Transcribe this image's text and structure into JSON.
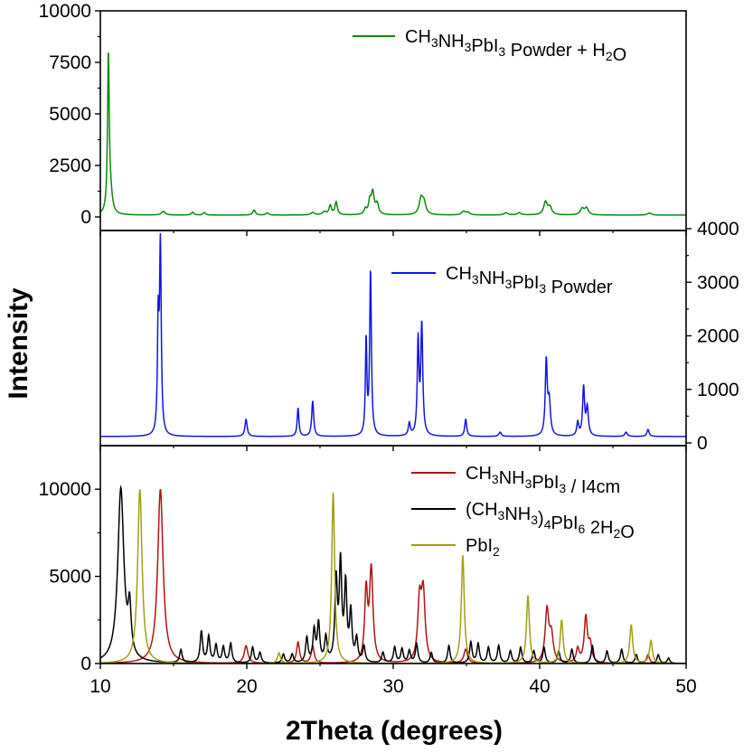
{
  "chart_data": {
    "type": "line",
    "xlabel": "2Theta (degrees)",
    "ylabel": "Intensity",
    "xlim": [
      10,
      50
    ],
    "xticks": [
      10,
      20,
      30,
      40,
      50
    ],
    "grid": false,
    "legend_position": "top-right",
    "panels": [
      {
        "id": "top",
        "ylim": [
          0,
          10000
        ],
        "yticks": [
          0,
          2500,
          5000,
          7500,
          10000
        ],
        "y_axis_side": "left",
        "series": [
          {
            "name": "CH3NH3PbI3 Powder + H2O",
            "legend_parts": [
              [
                "CH",
                ""
              ],
              [
                "3",
                "sub"
              ],
              [
                "NH",
                ""
              ],
              [
                "3",
                "sub"
              ],
              [
                "PbI",
                ""
              ],
              [
                "3",
                "sub"
              ],
              [
                " Powder + H",
                ""
              ],
              [
                "2",
                "sub"
              ],
              [
                "O",
                ""
              ]
            ],
            "color": "#0a8a0a",
            "baseline": 90,
            "peaks": [
              [
                10.55,
                7600,
                0.07
              ],
              [
                10.7,
                800,
                0.15
              ],
              [
                14.3,
                180,
                0.15
              ],
              [
                16.3,
                140,
                0.1
              ],
              [
                17.1,
                120,
                0.1
              ],
              [
                20.5,
                250,
                0.1
              ],
              [
                21.4,
                110,
                0.1
              ],
              [
                24.5,
                120,
                0.15
              ],
              [
                25.3,
                150,
                0.15
              ],
              [
                25.7,
                450,
                0.1
              ],
              [
                26.1,
                620,
                0.1
              ],
              [
                28.1,
                260,
                0.1
              ],
              [
                28.4,
                600,
                0.1
              ],
              [
                28.6,
                1050,
                0.12
              ],
              [
                28.9,
                500,
                0.12
              ],
              [
                31.9,
                750,
                0.15
              ],
              [
                32.1,
                550,
                0.15
              ],
              [
                34.8,
                170,
                0.15
              ],
              [
                35.1,
                120,
                0.15
              ],
              [
                37.7,
                110,
                0.15
              ],
              [
                38.6,
                110,
                0.15
              ],
              [
                40.4,
                620,
                0.15
              ],
              [
                40.7,
                350,
                0.15
              ],
              [
                42.9,
                300,
                0.15
              ],
              [
                43.2,
                330,
                0.15
              ],
              [
                47.5,
                100,
                0.15
              ]
            ]
          }
        ]
      },
      {
        "id": "middle",
        "ylim": [
          0,
          4000
        ],
        "yticks": [
          0,
          1000,
          2000,
          3000,
          4000
        ],
        "y_axis_side": "right",
        "series": [
          {
            "name": "CH3NH3PbI3 Powder",
            "legend_parts": [
              [
                "CH",
                ""
              ],
              [
                "3",
                "sub"
              ],
              [
                "NH",
                ""
              ],
              [
                "3",
                "sub"
              ],
              [
                "PbI",
                ""
              ],
              [
                "3",
                "sub"
              ],
              [
                " Powder",
                ""
              ]
            ],
            "color": "#1414e6",
            "baseline": 120,
            "peaks": [
              [
                13.95,
                2000,
                0.06
              ],
              [
                14.1,
                3520,
                0.07
              ],
              [
                19.95,
                320,
                0.09
              ],
              [
                23.5,
                530,
                0.07
              ],
              [
                24.5,
                660,
                0.08
              ],
              [
                28.15,
                1770,
                0.06
              ],
              [
                28.45,
                3060,
                0.07
              ],
              [
                31.1,
                230,
                0.08
              ],
              [
                31.7,
                1750,
                0.07
              ],
              [
                31.95,
                2050,
                0.08
              ],
              [
                34.95,
                320,
                0.08
              ],
              [
                37.3,
                80,
                0.1
              ],
              [
                40.45,
                1380,
                0.08
              ],
              [
                40.65,
                620,
                0.1
              ],
              [
                42.6,
                250,
                0.08
              ],
              [
                43.0,
                900,
                0.08
              ],
              [
                43.25,
                520,
                0.09
              ],
              [
                45.9,
                80,
                0.1
              ],
              [
                47.4,
                130,
                0.09
              ]
            ]
          }
        ]
      },
      {
        "id": "bottom",
        "ylim": [
          0,
          12500
        ],
        "yticks": [
          0,
          5000,
          10000
        ],
        "y_axis_side": "left",
        "series": [
          {
            "name": "CH3NH3PbI3 / I4cm",
            "legend_parts": [
              [
                "CH",
                ""
              ],
              [
                "3",
                "sub"
              ],
              [
                "NH",
                ""
              ],
              [
                "3",
                "sub"
              ],
              [
                "PbI",
                ""
              ],
              [
                "3",
                "sub"
              ],
              [
                " / I4cm",
                ""
              ]
            ],
            "color": "#b01414",
            "baseline": 0,
            "peaks": [
              [
                14.1,
                10000,
                0.22
              ],
              [
                19.95,
                1000,
                0.15
              ],
              [
                23.5,
                1200,
                0.12
              ],
              [
                24.5,
                1000,
                0.12
              ],
              [
                28.15,
                4000,
                0.12
              ],
              [
                28.5,
                5300,
                0.14
              ],
              [
                31.8,
                3400,
                0.15
              ],
              [
                32.05,
                3800,
                0.15
              ],
              [
                34.95,
                800,
                0.15
              ],
              [
                40.5,
                3000,
                0.15
              ],
              [
                40.8,
                1500,
                0.15
              ],
              [
                42.6,
                800,
                0.12
              ],
              [
                43.15,
                2600,
                0.13
              ],
              [
                43.45,
                1000,
                0.13
              ],
              [
                47.4,
                500,
                0.12
              ]
            ]
          },
          {
            "name": "(CH3NH3)4PbI6 2H2O",
            "legend_parts": [
              [
                "(CH",
                ""
              ],
              [
                "3",
                "sub"
              ],
              [
                "NH",
                ""
              ],
              [
                "3",
                "sub"
              ],
              [
                ")",
                ""
              ],
              [
                "4",
                "sub"
              ],
              [
                "PbI",
                ""
              ],
              [
                "6",
                "sub"
              ],
              [
                " 2H",
                ""
              ],
              [
                "2",
                "sub"
              ],
              [
                "O",
                ""
              ]
            ],
            "color": "#000000",
            "baseline": 0,
            "peaks": [
              [
                11.4,
                10000,
                0.25
              ],
              [
                12.0,
                2600,
                0.12
              ],
              [
                15.5,
                750,
                0.1
              ],
              [
                16.9,
                1800,
                0.1
              ],
              [
                17.4,
                1500,
                0.1
              ],
              [
                17.9,
                1000,
                0.1
              ],
              [
                18.4,
                900,
                0.1
              ],
              [
                18.9,
                1100,
                0.1
              ],
              [
                20.4,
                900,
                0.1
              ],
              [
                20.9,
                600,
                0.1
              ],
              [
                22.5,
                500,
                0.1
              ],
              [
                23.1,
                500,
                0.1
              ],
              [
                24.1,
                1400,
                0.1
              ],
              [
                24.6,
                1800,
                0.1
              ],
              [
                24.9,
                2200,
                0.1
              ],
              [
                25.4,
                1400,
                0.1
              ],
              [
                26.1,
                4600,
                0.1
              ],
              [
                26.4,
                5500,
                0.1
              ],
              [
                26.75,
                4300,
                0.1
              ],
              [
                27.1,
                2800,
                0.1
              ],
              [
                27.5,
                1300,
                0.1
              ],
              [
                28.0,
                900,
                0.1
              ],
              [
                29.3,
                600,
                0.1
              ],
              [
                30.1,
                900,
                0.1
              ],
              [
                30.6,
                800,
                0.1
              ],
              [
                31.1,
                700,
                0.1
              ],
              [
                31.6,
                1100,
                0.1
              ],
              [
                32.6,
                600,
                0.1
              ],
              [
                33.8,
                1000,
                0.1
              ],
              [
                35.3,
                1200,
                0.1
              ],
              [
                35.8,
                1100,
                0.1
              ],
              [
                36.5,
                900,
                0.1
              ],
              [
                37.2,
                1000,
                0.1
              ],
              [
                38.0,
                700,
                0.1
              ],
              [
                38.7,
                900,
                0.1
              ],
              [
                39.6,
                700,
                0.1
              ],
              [
                40.3,
                900,
                0.1
              ],
              [
                41.3,
                700,
                0.1
              ],
              [
                42.2,
                800,
                0.1
              ],
              [
                43.6,
                1000,
                0.1
              ],
              [
                44.6,
                700,
                0.1
              ],
              [
                45.6,
                800,
                0.1
              ],
              [
                46.6,
                500,
                0.1
              ],
              [
                48.1,
                500,
                0.1
              ],
              [
                48.8,
                300,
                0.1
              ]
            ]
          },
          {
            "name": "PbI2",
            "legend_parts": [
              [
                "PbI",
                ""
              ],
              [
                "2",
                "sub"
              ]
            ],
            "color": "#a0a014",
            "baseline": 0,
            "peaks": [
              [
                12.7,
                10000,
                0.18
              ],
              [
                22.2,
                600,
                0.12
              ],
              [
                25.9,
                9800,
                0.12
              ],
              [
                34.75,
                6200,
                0.12
              ],
              [
                39.2,
                3900,
                0.12
              ],
              [
                41.5,
                2500,
                0.12
              ],
              [
                46.25,
                2200,
                0.12
              ],
              [
                47.6,
                1300,
                0.12
              ]
            ]
          }
        ]
      }
    ]
  }
}
